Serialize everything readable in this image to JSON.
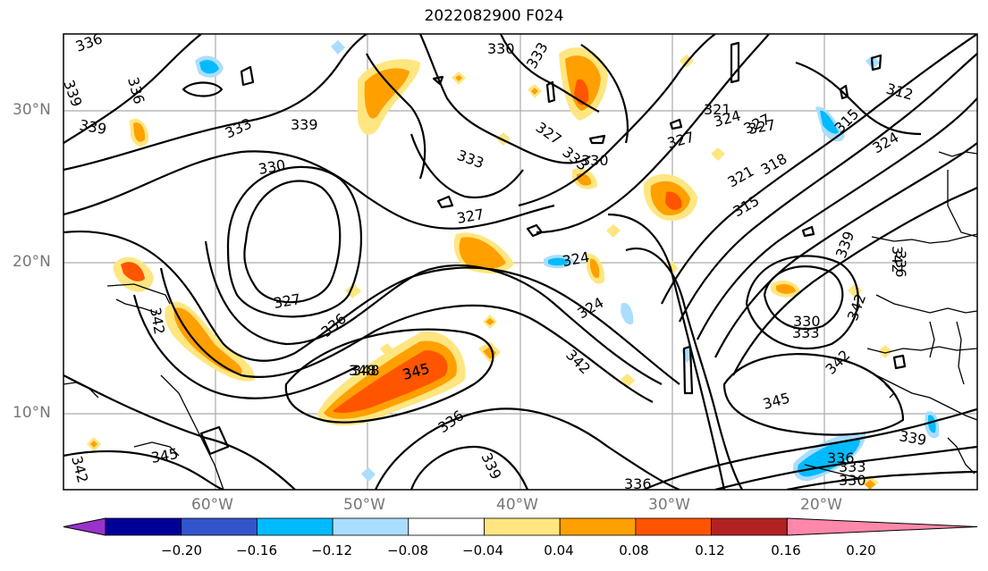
{
  "title": "2022082900 F024",
  "map": {
    "lat_ticks": [
      "30°N",
      "20°N",
      "10°N"
    ],
    "lon_ticks": [
      "60°W",
      "50°W",
      "40°W",
      "30°W",
      "20°W"
    ],
    "grid": true,
    "contour_labels": [
      "336",
      "339",
      "336",
      "339",
      "333",
      "339",
      "330",
      "330",
      "333",
      "327",
      "333",
      "333",
      "330",
      "327",
      "327",
      "321",
      "324",
      "327",
      "312",
      "315",
      "324",
      "327",
      "321",
      "318",
      "315",
      "336",
      "348",
      "339",
      "342",
      "327",
      "324",
      "336",
      "342",
      "324",
      "342",
      "330",
      "333",
      "345",
      "348",
      "345",
      "342",
      "336",
      "339",
      "345",
      "336",
      "333",
      "330",
      "339",
      "345",
      "342",
      "336",
      "342"
    ]
  },
  "colorbar": {
    "labels": [
      "−0.20",
      "−0.16",
      "−0.12",
      "−0.08",
      "−0.04",
      "0.04",
      "0.08",
      "0.12",
      "0.16",
      "0.20"
    ],
    "colors": [
      "#9933cc",
      "#000099",
      "#3355cc",
      "#00bbff",
      "#aaddff",
      "#ffffff",
      "#ffe680",
      "#ffa000",
      "#ff5500",
      "#b22222",
      "#ff88aa"
    ]
  }
}
